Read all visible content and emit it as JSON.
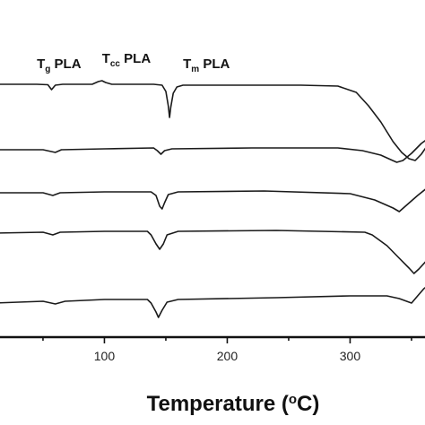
{
  "chart_data": {
    "type": "line",
    "title": "",
    "xlabel": {
      "main": "Temperature (",
      "sup": "o",
      "tail": "C)"
    },
    "ylabel": "",
    "xlim": [
      10,
      378
    ],
    "x_ticks": [
      100,
      200,
      300
    ],
    "grid": false,
    "legend": "none",
    "annotations": [
      {
        "name": "tg-label",
        "main": "T",
        "sub": "g",
        "tail": " PLA",
        "x": 45
      },
      {
        "name": "tcc-label",
        "main": "T",
        "sub": "cc",
        "tail": " PLA",
        "x": 98
      },
      {
        "name": "tm-label",
        "main": "T",
        "sub": "m",
        "tail": " PLA",
        "x": 164
      }
    ],
    "series": [
      {
        "points": [
          [
            10,
            94
          ],
          [
            45,
            94
          ],
          [
            54,
            94.5
          ],
          [
            57,
            100
          ],
          [
            60,
            95
          ],
          [
            66,
            94
          ],
          [
            90,
            94
          ],
          [
            95,
            91
          ],
          [
            98,
            90
          ],
          [
            101,
            92
          ],
          [
            106,
            94
          ],
          [
            140,
            94
          ],
          [
            147,
            95
          ],
          [
            150,
            102
          ],
          [
            152,
            118
          ],
          [
            153,
            131
          ],
          [
            154,
            120
          ],
          [
            156,
            104
          ],
          [
            159,
            97
          ],
          [
            164,
            95
          ],
          [
            200,
            95
          ],
          [
            260,
            95
          ],
          [
            290,
            96
          ],
          [
            305,
            103
          ],
          [
            315,
            118
          ],
          [
            325,
            136
          ],
          [
            335,
            158
          ],
          [
            342,
            170
          ],
          [
            348,
            177
          ],
          [
            353,
            179
          ],
          [
            358,
            172
          ],
          [
            364,
            160
          ],
          [
            371,
            148
          ],
          [
            378,
            140
          ]
        ]
      },
      {
        "points": [
          [
            10,
            167
          ],
          [
            50,
            167
          ],
          [
            60,
            170
          ],
          [
            65,
            167
          ],
          [
            100,
            166
          ],
          [
            140,
            165
          ],
          [
            143,
            168
          ],
          [
            146,
            172
          ],
          [
            149,
            168
          ],
          [
            155,
            166
          ],
          [
            220,
            165
          ],
          [
            290,
            165
          ],
          [
            310,
            168
          ],
          [
            325,
            173
          ],
          [
            333,
            178
          ],
          [
            338,
            181
          ],
          [
            343,
            179
          ],
          [
            350,
            171
          ],
          [
            358,
            160
          ],
          [
            368,
            150
          ],
          [
            378,
            145
          ]
        ]
      },
      {
        "points": [
          [
            10,
            215
          ],
          [
            50,
            215
          ],
          [
            58,
            218
          ],
          [
            64,
            215
          ],
          [
            100,
            214
          ],
          [
            138,
            214
          ],
          [
            142,
            218
          ],
          [
            145,
            230
          ],
          [
            147,
            233
          ],
          [
            149,
            226
          ],
          [
            152,
            217
          ],
          [
            160,
            214
          ],
          [
            230,
            213
          ],
          [
            300,
            216
          ],
          [
            320,
            223
          ],
          [
            335,
            232
          ],
          [
            340,
            236
          ],
          [
            345,
            230
          ],
          [
            355,
            218
          ],
          [
            365,
            207
          ],
          [
            378,
            198
          ]
        ]
      },
      {
        "points": [
          [
            10,
            260
          ],
          [
            50,
            259
          ],
          [
            58,
            262
          ],
          [
            64,
            259
          ],
          [
            100,
            258
          ],
          [
            135,
            258
          ],
          [
            138,
            262
          ],
          [
            142,
            272
          ],
          [
            145,
            278
          ],
          [
            148,
            272
          ],
          [
            151,
            262
          ],
          [
            160,
            258
          ],
          [
            240,
            257
          ],
          [
            312,
            259
          ],
          [
            318,
            262
          ],
          [
            330,
            274
          ],
          [
            340,
            288
          ],
          [
            348,
            299
          ],
          [
            352,
            305
          ],
          [
            356,
            300
          ],
          [
            362,
            291
          ],
          [
            370,
            286
          ],
          [
            378,
            284
          ]
        ]
      },
      {
        "points": [
          [
            10,
            338
          ],
          [
            50,
            336
          ],
          [
            60,
            339
          ],
          [
            68,
            336
          ],
          [
            100,
            334
          ],
          [
            135,
            334
          ],
          [
            138,
            338
          ],
          [
            142,
            348
          ],
          [
            144,
            354
          ],
          [
            147,
            346
          ],
          [
            151,
            337
          ],
          [
            160,
            334
          ],
          [
            240,
            332
          ],
          [
            300,
            330
          ],
          [
            330,
            330
          ],
          [
            340,
            333
          ],
          [
            346,
            336
          ],
          [
            350,
            338
          ],
          [
            355,
            330
          ],
          [
            360,
            322
          ],
          [
            366,
            316
          ],
          [
            372,
            314
          ],
          [
            378,
            314
          ]
        ]
      }
    ]
  }
}
